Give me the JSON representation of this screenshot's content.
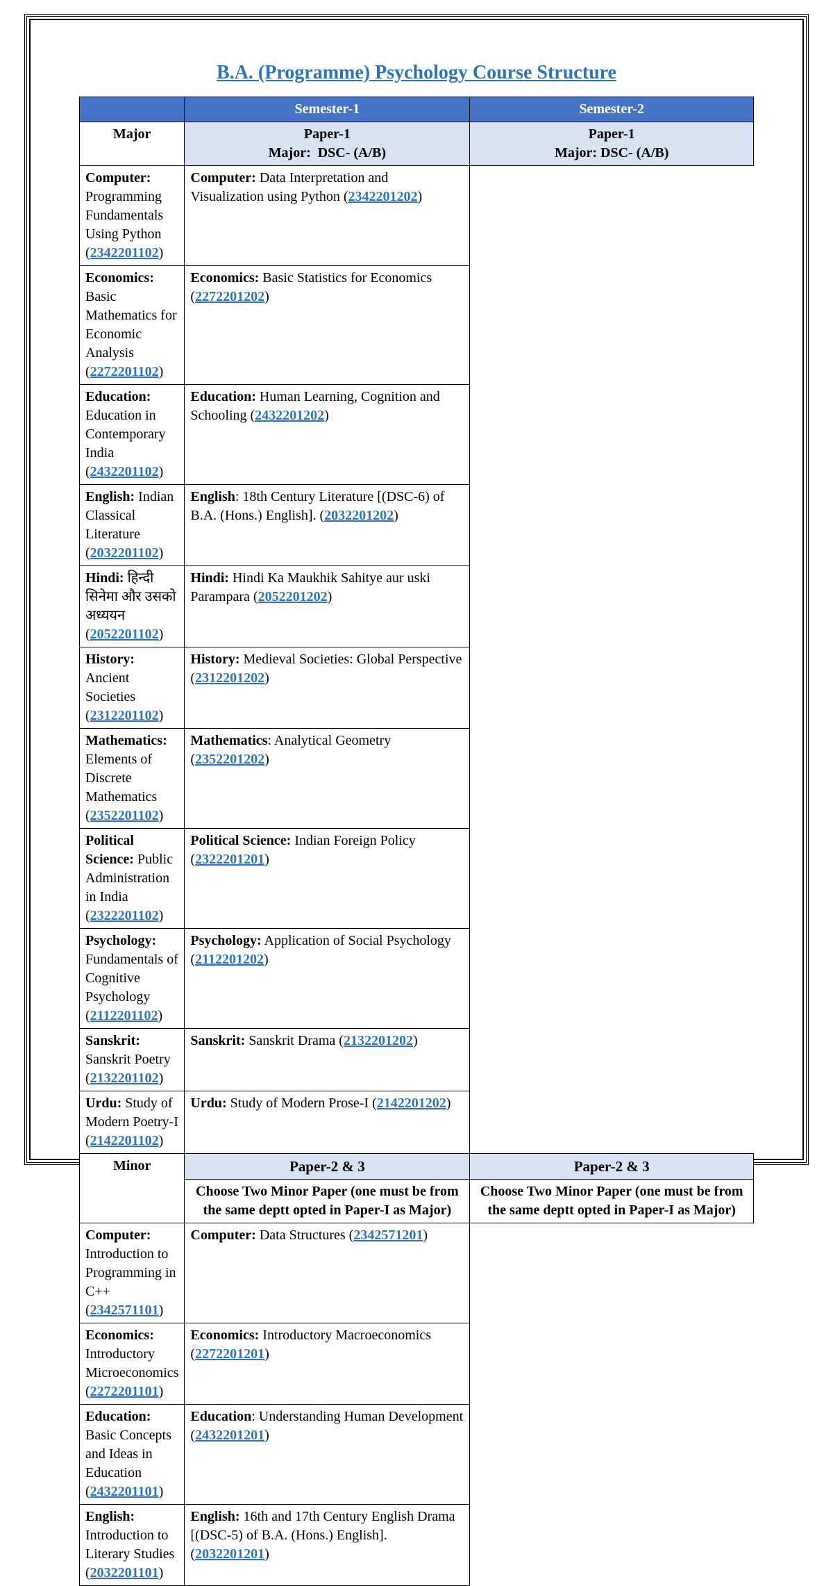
{
  "title": "B.A. (Programme) Psychology Course Structure",
  "colors": {
    "header_bg": "#4472c4",
    "sub_bg": "#d9e2f3",
    "link": "#2e74b5",
    "title": "#2e74b5"
  },
  "headers": {
    "blank": "",
    "sem1": "Semester-1",
    "sem2": "Semester-2"
  },
  "major": {
    "label": "Major",
    "sub1": "Paper-1\nMajor:  DSC- (A/B)",
    "sub2": "Paper-1\nMajor: DSC- (A/B)",
    "rows": [
      {
        "s1": {
          "subj": "Computer:",
          "txt": " Programming Fundamentals Using Python (",
          "code": "2342201102",
          "end": ")"
        },
        "s2": {
          "subj": "Computer:",
          "txt": " Data Interpretation and Visualization using Python (",
          "code": "2342201202",
          "end": ")"
        }
      },
      {
        "s1": {
          "subj": "Economics:",
          "txt": " Basic Mathematics for Economic Analysis (",
          "code": "2272201102",
          "end": ")"
        },
        "s2": {
          "subj": "Economics:",
          "txt": " Basic Statistics for Economics (",
          "code": "2272201202",
          "end": ")"
        }
      },
      {
        "s1": {
          "subj": "Education:",
          "txt": " Education in Contemporary India (",
          "code": "2432201102",
          "end": ")"
        },
        "s2": {
          "subj": "Education:",
          "txt": " Human Learning, Cognition and Schooling (",
          "code": "2432201202",
          "end": ")"
        }
      },
      {
        "s1": {
          "subj": "English:",
          "txt": " Indian Classical Literature (",
          "code": "2032201102",
          "end": ")"
        },
        "s2": {
          "subj": "English",
          "txt": ": 18th Century Literature [(DSC-6) of B.A. (Hons.) English]. (",
          "code": "2032201202",
          "end": ")"
        }
      },
      {
        "s1": {
          "subj": "Hindi:",
          "txt": " हिन्दी सिनेमा और उसको अध्ययन (",
          "code": "2052201102",
          "end": ")"
        },
        "s2": {
          "subj": "Hindi:",
          "txt": " Hindi Ka Maukhik Sahitye aur uski Parampara (",
          "code": "2052201202",
          "end": ")"
        }
      },
      {
        "s1": {
          "subj": "History:",
          "txt": " Ancient Societies (",
          "code": "2312201102",
          "end": ")"
        },
        "s2": {
          "subj": "History:",
          "txt": " Medieval Societies: Global Perspective (",
          "code": "2312201202",
          "end": ")"
        }
      },
      {
        "s1": {
          "subj": "Mathematics:",
          "txt": " Elements of Discrete Mathematics (",
          "code": "2352201102",
          "end": ")"
        },
        "s2": {
          "subj": "Mathematics",
          "txt": ": Analytical Geometry (",
          "code": "2352201202",
          "end": ")"
        }
      },
      {
        "s1": {
          "subj": "Political Science:",
          "txt": " Public Administration in India (",
          "code": "2322201102",
          "end": ")"
        },
        "s2": {
          "subj": "Political Science:",
          "txt": " Indian Foreign Policy (",
          "code": "2322201201",
          "end": ")"
        }
      },
      {
        "s1": {
          "subj": "Psychology:",
          "txt": " Fundamentals of Cognitive Psychology (",
          "code": "2112201102",
          "end": ")"
        },
        "s2": {
          "subj": "Psychology:",
          "txt": " Application of Social Psychology (",
          "code": "2112201202",
          "end": ")"
        }
      },
      {
        "s1": {
          "subj": "Sanskrit:",
          "txt": " Sanskrit Poetry (",
          "code": "2132201102",
          "end": ")"
        },
        "s2": {
          "subj": "Sanskrit:",
          "txt": " Sanskrit Drama (",
          "code": "2132201202",
          "end": ")"
        }
      },
      {
        "s1": {
          "subj": "Urdu:",
          "txt": " Study of Modern Poetry-I (",
          "code": "2142201102",
          "end": ")"
        },
        "s2": {
          "subj": "Urdu:",
          "txt": " Study of Modern Prose-I (",
          "code": "2142201202",
          "end": ")"
        }
      }
    ]
  },
  "minor": {
    "label": "Minor",
    "sub1": "Paper-2 & 3",
    "sub2": "Paper-2 & 3",
    "instr1": "Choose Two Minor Paper (one must be from the same deptt opted in Paper-I as Major)",
    "instr2": "Choose Two Minor Paper (one must be from the same deptt opted in Paper-I as Major)",
    "rows": [
      {
        "s1": {
          "subj": "Computer:",
          "txt": " Introduction to Programming in      C++ (",
          "code": "2342571101",
          "end": ")"
        },
        "s2": {
          "subj": "Computer:",
          "txt": " Data Structures (",
          "code": "2342571201",
          "end": ")"
        }
      },
      {
        "s1": {
          "subj": "Economics:",
          "txt": " Introductory Microeconomics (",
          "code": "2272201101",
          "end": ")"
        },
        "s2": {
          "subj": "Economics:",
          "txt": " Introductory Macroeconomics (",
          "code": "2272201201",
          "end": ")"
        }
      },
      {
        "s1": {
          "subj": "Education:",
          "txt": " Basic Concepts and Ideas in Education (",
          "code": "2432201101",
          "end": ")"
        },
        "s2": {
          "subj": "Education",
          "txt": ": Understanding Human Development (",
          "code": "2432201201",
          "end": ")"
        }
      },
      {
        "s1": {
          "subj": "English:",
          "txt": " Introduction to Literary Studies (",
          "code": "2032201101",
          "end": ")"
        },
        "s2": {
          "subj": "English:",
          "txt": " 16th and 17th Century English Drama [(DSC-5) of B.A. (Hons.) English]. (",
          "code": "2032201201",
          "end": ")"
        }
      }
    ]
  }
}
